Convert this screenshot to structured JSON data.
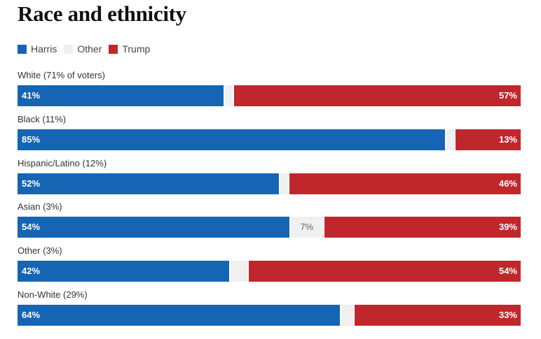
{
  "title": "Race and ethnicity",
  "legend": [
    {
      "label": "Harris",
      "color": "#1565b4"
    },
    {
      "label": "Other",
      "color": "#f0f0f0"
    },
    {
      "label": "Trump",
      "color": "#c0272d"
    }
  ],
  "chart_data": {
    "type": "bar",
    "orientation": "horizontal-stacked",
    "title": "Race and ethnicity",
    "categories": [
      "White (71% of voters)",
      "Black (11%)",
      "Hispanic/Latino (12%)",
      "Asian (3%)",
      "Other (3%)",
      "Non-White (29%)"
    ],
    "series": [
      {
        "name": "Harris",
        "color": "#1565b4",
        "values": [
          41,
          85,
          52,
          54,
          42,
          64
        ]
      },
      {
        "name": "Other",
        "color": "#f0f0f0",
        "values": [
          2,
          2,
          2,
          7,
          4,
          3
        ]
      },
      {
        "name": "Trump",
        "color": "#c0272d",
        "values": [
          57,
          13,
          46,
          39,
          54,
          33
        ]
      }
    ],
    "value_labels": {
      "Harris": [
        "41%",
        "85%",
        "52%",
        "54%",
        "42%",
        "64%"
      ],
      "Other": [
        "",
        "",
        "",
        "7%",
        "",
        ""
      ],
      "Trump": [
        "57%",
        "13%",
        "46%",
        "39%",
        "54%",
        "33%"
      ]
    },
    "legend_position": "top-left",
    "xlim": [
      0,
      100
    ],
    "grid": false
  }
}
